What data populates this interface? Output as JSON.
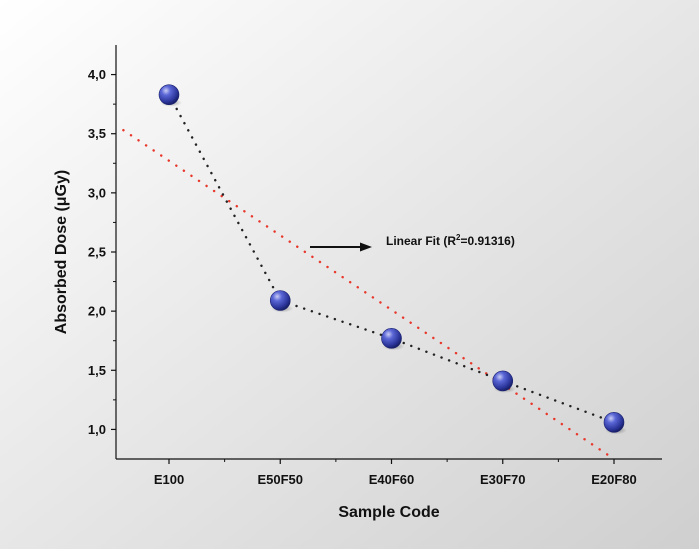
{
  "chart_data": {
    "type": "scatter",
    "categories": [
      "E100",
      "E50F50",
      "E40F60",
      "E30F70",
      "E20F80"
    ],
    "series": [
      {
        "values": [
          3.83,
          2.09,
          1.77,
          1.41,
          1.06
        ]
      }
    ],
    "fit_line": {
      "start": 3.53,
      "end": 0.75,
      "x_start_index": -0.5,
      "x_end_index": 4.0
    },
    "ylabel_prefix": "Absorbed Dose (",
    "ylabel_unit": "μGy",
    "ylabel_suffix": ")",
    "xlabel": "Sample Code",
    "ylim": [
      0.75,
      4.25
    ],
    "yticks": [
      "1,0",
      "1,5",
      "2,0",
      "2,5",
      "3,0",
      "3,5",
      "4,0"
    ],
    "ytick_values": [
      1.0,
      1.5,
      2.0,
      2.5,
      3.0,
      3.5,
      4.0
    ],
    "annotation": {
      "prefix": "Linear Fit (R",
      "sup": "2",
      "suffix": "=0.91316)"
    },
    "colors": {
      "marker": "#2f3fb0",
      "data_line": "#222222",
      "fit_line": "#e8382c"
    },
    "grid": false
  }
}
